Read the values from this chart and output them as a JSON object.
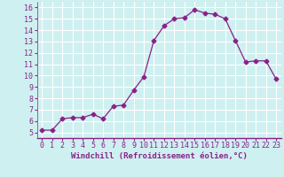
{
  "x": [
    0,
    1,
    2,
    3,
    4,
    5,
    6,
    7,
    8,
    9,
    10,
    11,
    12,
    13,
    14,
    15,
    16,
    17,
    18,
    19,
    20,
    21,
    22,
    23
  ],
  "y": [
    5.2,
    5.2,
    6.2,
    6.3,
    6.3,
    6.6,
    6.2,
    7.3,
    7.4,
    8.7,
    9.9,
    13.1,
    14.4,
    15.0,
    15.1,
    15.8,
    15.5,
    15.4,
    15.0,
    13.1,
    11.2,
    11.3,
    11.3,
    9.7
  ],
  "xlim": [
    -0.5,
    23.5
  ],
  "ylim": [
    4.5,
    16.5
  ],
  "yticks": [
    5,
    6,
    7,
    8,
    9,
    10,
    11,
    12,
    13,
    14,
    15,
    16
  ],
  "xticks": [
    0,
    1,
    2,
    3,
    4,
    5,
    6,
    7,
    8,
    9,
    10,
    11,
    12,
    13,
    14,
    15,
    16,
    17,
    18,
    19,
    20,
    21,
    22,
    23
  ],
  "xlabel": "Windchill (Refroidissement éolien,°C)",
  "line_color": "#882288",
  "marker": "D",
  "marker_size": 2.5,
  "bg_color": "#cff0f0",
  "grid_color": "#ffffff",
  "xlabel_fontsize": 6.5,
  "tick_fontsize": 6
}
